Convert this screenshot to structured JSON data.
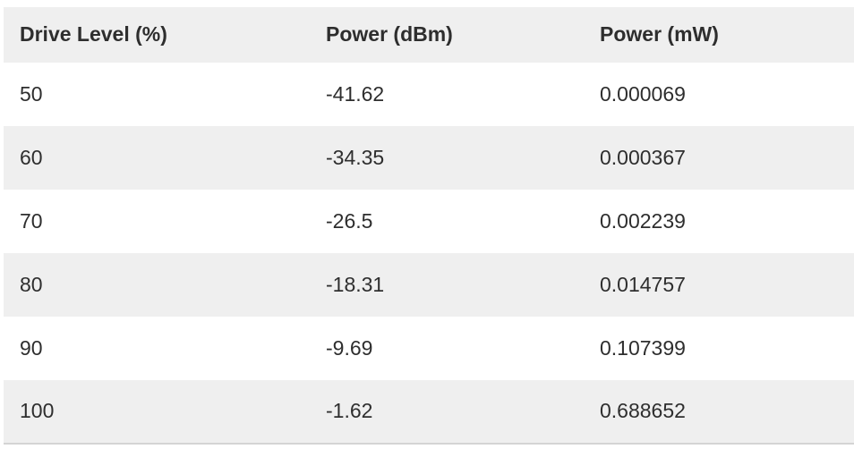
{
  "table": {
    "columns": [
      "Drive Level (%)",
      "Power (dBm)",
      "Power (mW)"
    ],
    "rows": [
      [
        "50",
        "-41.62",
        "0.000069"
      ],
      [
        "60",
        "-34.35",
        "0.000367"
      ],
      [
        "70",
        "-26.5",
        "0.002239"
      ],
      [
        "80",
        "-18.31",
        "0.014757"
      ],
      [
        "90",
        "-9.69",
        "0.107399"
      ],
      [
        "100",
        "-1.62",
        "0.688652"
      ]
    ]
  },
  "colors": {
    "header_bg": "#efefef",
    "stripe_bg": "#efefef",
    "row_bg": "#ffffff",
    "text": "#2e2e2e",
    "bottom_border": "#d4d4d4",
    "page_bg": "#ffffff"
  },
  "chart_data": {
    "type": "table",
    "title": "",
    "columns": [
      "Drive Level (%)",
      "Power (dBm)",
      "Power (mW)"
    ],
    "rows": [
      [
        50,
        -41.62,
        6.9e-05
      ],
      [
        60,
        -34.35,
        0.000367
      ],
      [
        70,
        -26.5,
        0.002239
      ],
      [
        80,
        -18.31,
        0.014757
      ],
      [
        90,
        -9.69,
        0.107399
      ],
      [
        100,
        -1.62,
        0.688652
      ]
    ],
    "layout_hints": {
      "striped": true,
      "stripe_pattern": "header and even data rows gray, odd data rows white",
      "alignment": "left"
    }
  }
}
